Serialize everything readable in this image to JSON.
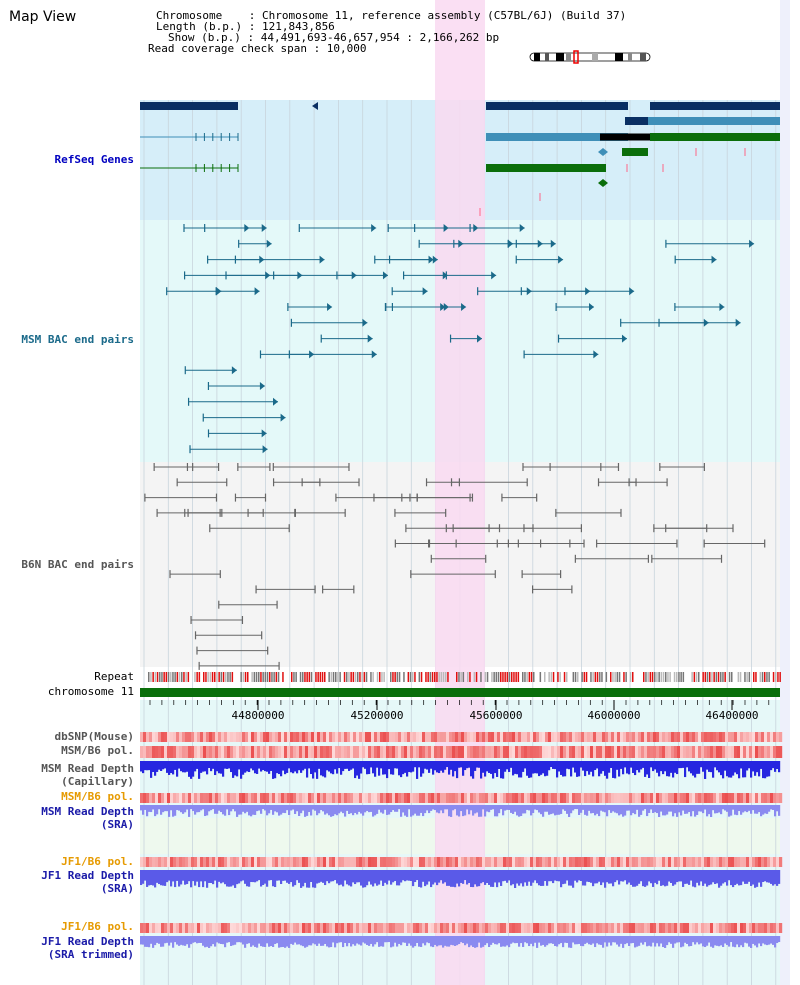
{
  "title": "Map View",
  "info": {
    "chromosome": "Chromosome    : Chromosome 11, reference assembly (C57BL/6J) (Build 37)",
    "length": "Length (b.p.) : 121,843,856",
    "show": "Show (b.p.) : 44,491,693-46,657,954 : 2,166,262 bp",
    "span": "Read coverage check span : 10,000"
  },
  "tracks": {
    "refseq": "RefSeq Genes",
    "msm_bac": "MSM BAC end pairs",
    "b6n_bac": "B6N BAC end pairs",
    "repeat": "Repeat",
    "chromosome": "chromosome 11",
    "dbsnp": "dbSNP(Mouse)",
    "msm_b6_pol": "MSM/B6 pol.",
    "msm_depth_cap_1": "MSM Read Depth",
    "msm_depth_cap_2": "(Capillary)",
    "msm_b6_pol2": "MSM/B6 pol.",
    "msm_depth_sra_1": "MSM Read Depth",
    "msm_depth_sra_2": "(SRA)",
    "jf1_b6_pol": "JF1/B6 pol.",
    "jf1_depth_sra_1": "JF1 Read Depth",
    "jf1_depth_sra_2": "(SRA)",
    "jf1_b6_pol2": "JF1/B6 pol.",
    "jf1_depth_trim_1": "JF1 Read Depth",
    "jf1_depth_trim_2": "(SRA trimmed)"
  },
  "ruler": {
    "ticks": [
      "44800000",
      "45200000",
      "45600000",
      "46000000",
      "46400000"
    ]
  },
  "colors": {
    "refseq_bg": "#d6eef9",
    "bac_bg": "#e4f9f9",
    "highlight": "#f9d9f1",
    "gene_dark": "#0a2f63",
    "gene_mid": "#3f8fb8",
    "gene_green": "#0b6e0b",
    "msm_line": "#1b6a8a",
    "b6n_line": "#666666",
    "chrom_bar": "#0a6e0a",
    "depth_blue": "#2626e0",
    "depth_light": "#8a8af0"
  }
}
